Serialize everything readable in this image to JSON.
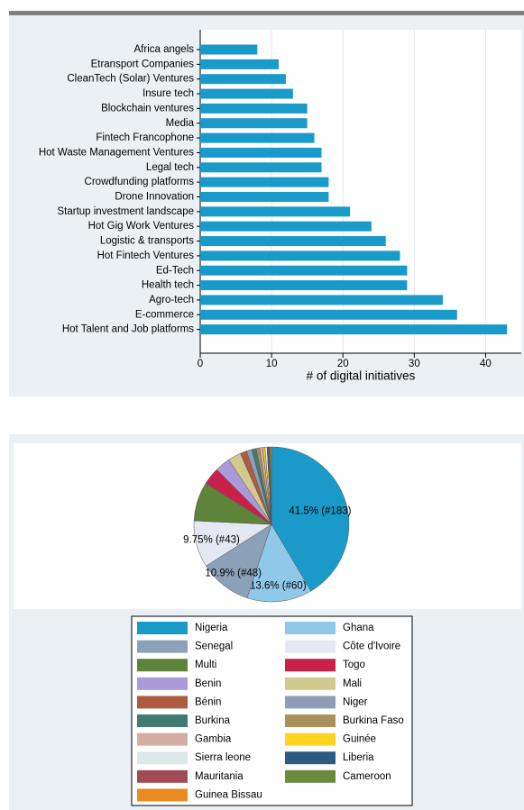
{
  "chart_data": [
    {
      "type": "barh",
      "categories": [
        "Africa angels",
        "Etransport Companies",
        "CleanTech (Solar) Ventures",
        "Insure tech",
        "Blockchain ventures",
        "Media",
        "Fintech Francophone",
        "Hot Waste Management Ventures",
        "Legal tech",
        "Crowdfunding platforms",
        "Drone Innovation",
        "Startup investment landscape",
        "Hot Gig Work Ventures",
        "Logistic & transports",
        "Hot Fintech Ventures",
        "Ed-Tech",
        "Health tech",
        "Agro-tech",
        "E-commerce",
        "Hot Talent and Job platforms"
      ],
      "values": [
        8,
        11,
        12,
        13,
        15,
        15,
        16,
        17,
        17,
        18,
        18,
        21,
        24,
        26,
        28,
        29,
        29,
        34,
        36,
        43
      ],
      "color": "#1a9ac9",
      "xlabel": "# of digital initiatives",
      "xlim": [
        0,
        45
      ],
      "xticks": [
        0,
        10,
        20,
        30,
        40
      ],
      "grid": true
    },
    {
      "type": "pie",
      "categories": [
        "Nigeria",
        "Ghana",
        "Senegal",
        "Côte d'Ivoire",
        "Multi",
        "Togo",
        "Benin",
        "Mali",
        "Bénin",
        "Niger",
        "Burkina",
        "Burkina Faso",
        "Gambia",
        "Guinée",
        "Sierra leone",
        "Liberia",
        "Mauritania",
        "Cameroon",
        "Guinea Bissau"
      ],
      "values": [
        183,
        60,
        48,
        43,
        36,
        16,
        14,
        12,
        6,
        5,
        4,
        3,
        3,
        2,
        2,
        1,
        1,
        1,
        1
      ],
      "value_labels": [
        "41.5% (#183)",
        "13.6% (#60)",
        "10.9% (#48)",
        "9.75% (#43)",
        null,
        null,
        null,
        null,
        null,
        null,
        null,
        null,
        null,
        null,
        null,
        null,
        null,
        null,
        null
      ],
      "colors": [
        "#1a9ac9",
        "#90c8ea",
        "#8ca1b8",
        "#e4e8f2",
        "#5e833a",
        "#c8224a",
        "#a89bd8",
        "#d2c990",
        "#ae5b3f",
        "#8e9eb8",
        "#3f7b70",
        "#a8925a",
        "#d3aca2",
        "#ffd320",
        "#dde8e8",
        "#2b5b80",
        "#a04c55",
        "#6a8a3e",
        "#e98b22"
      ]
    }
  ]
}
